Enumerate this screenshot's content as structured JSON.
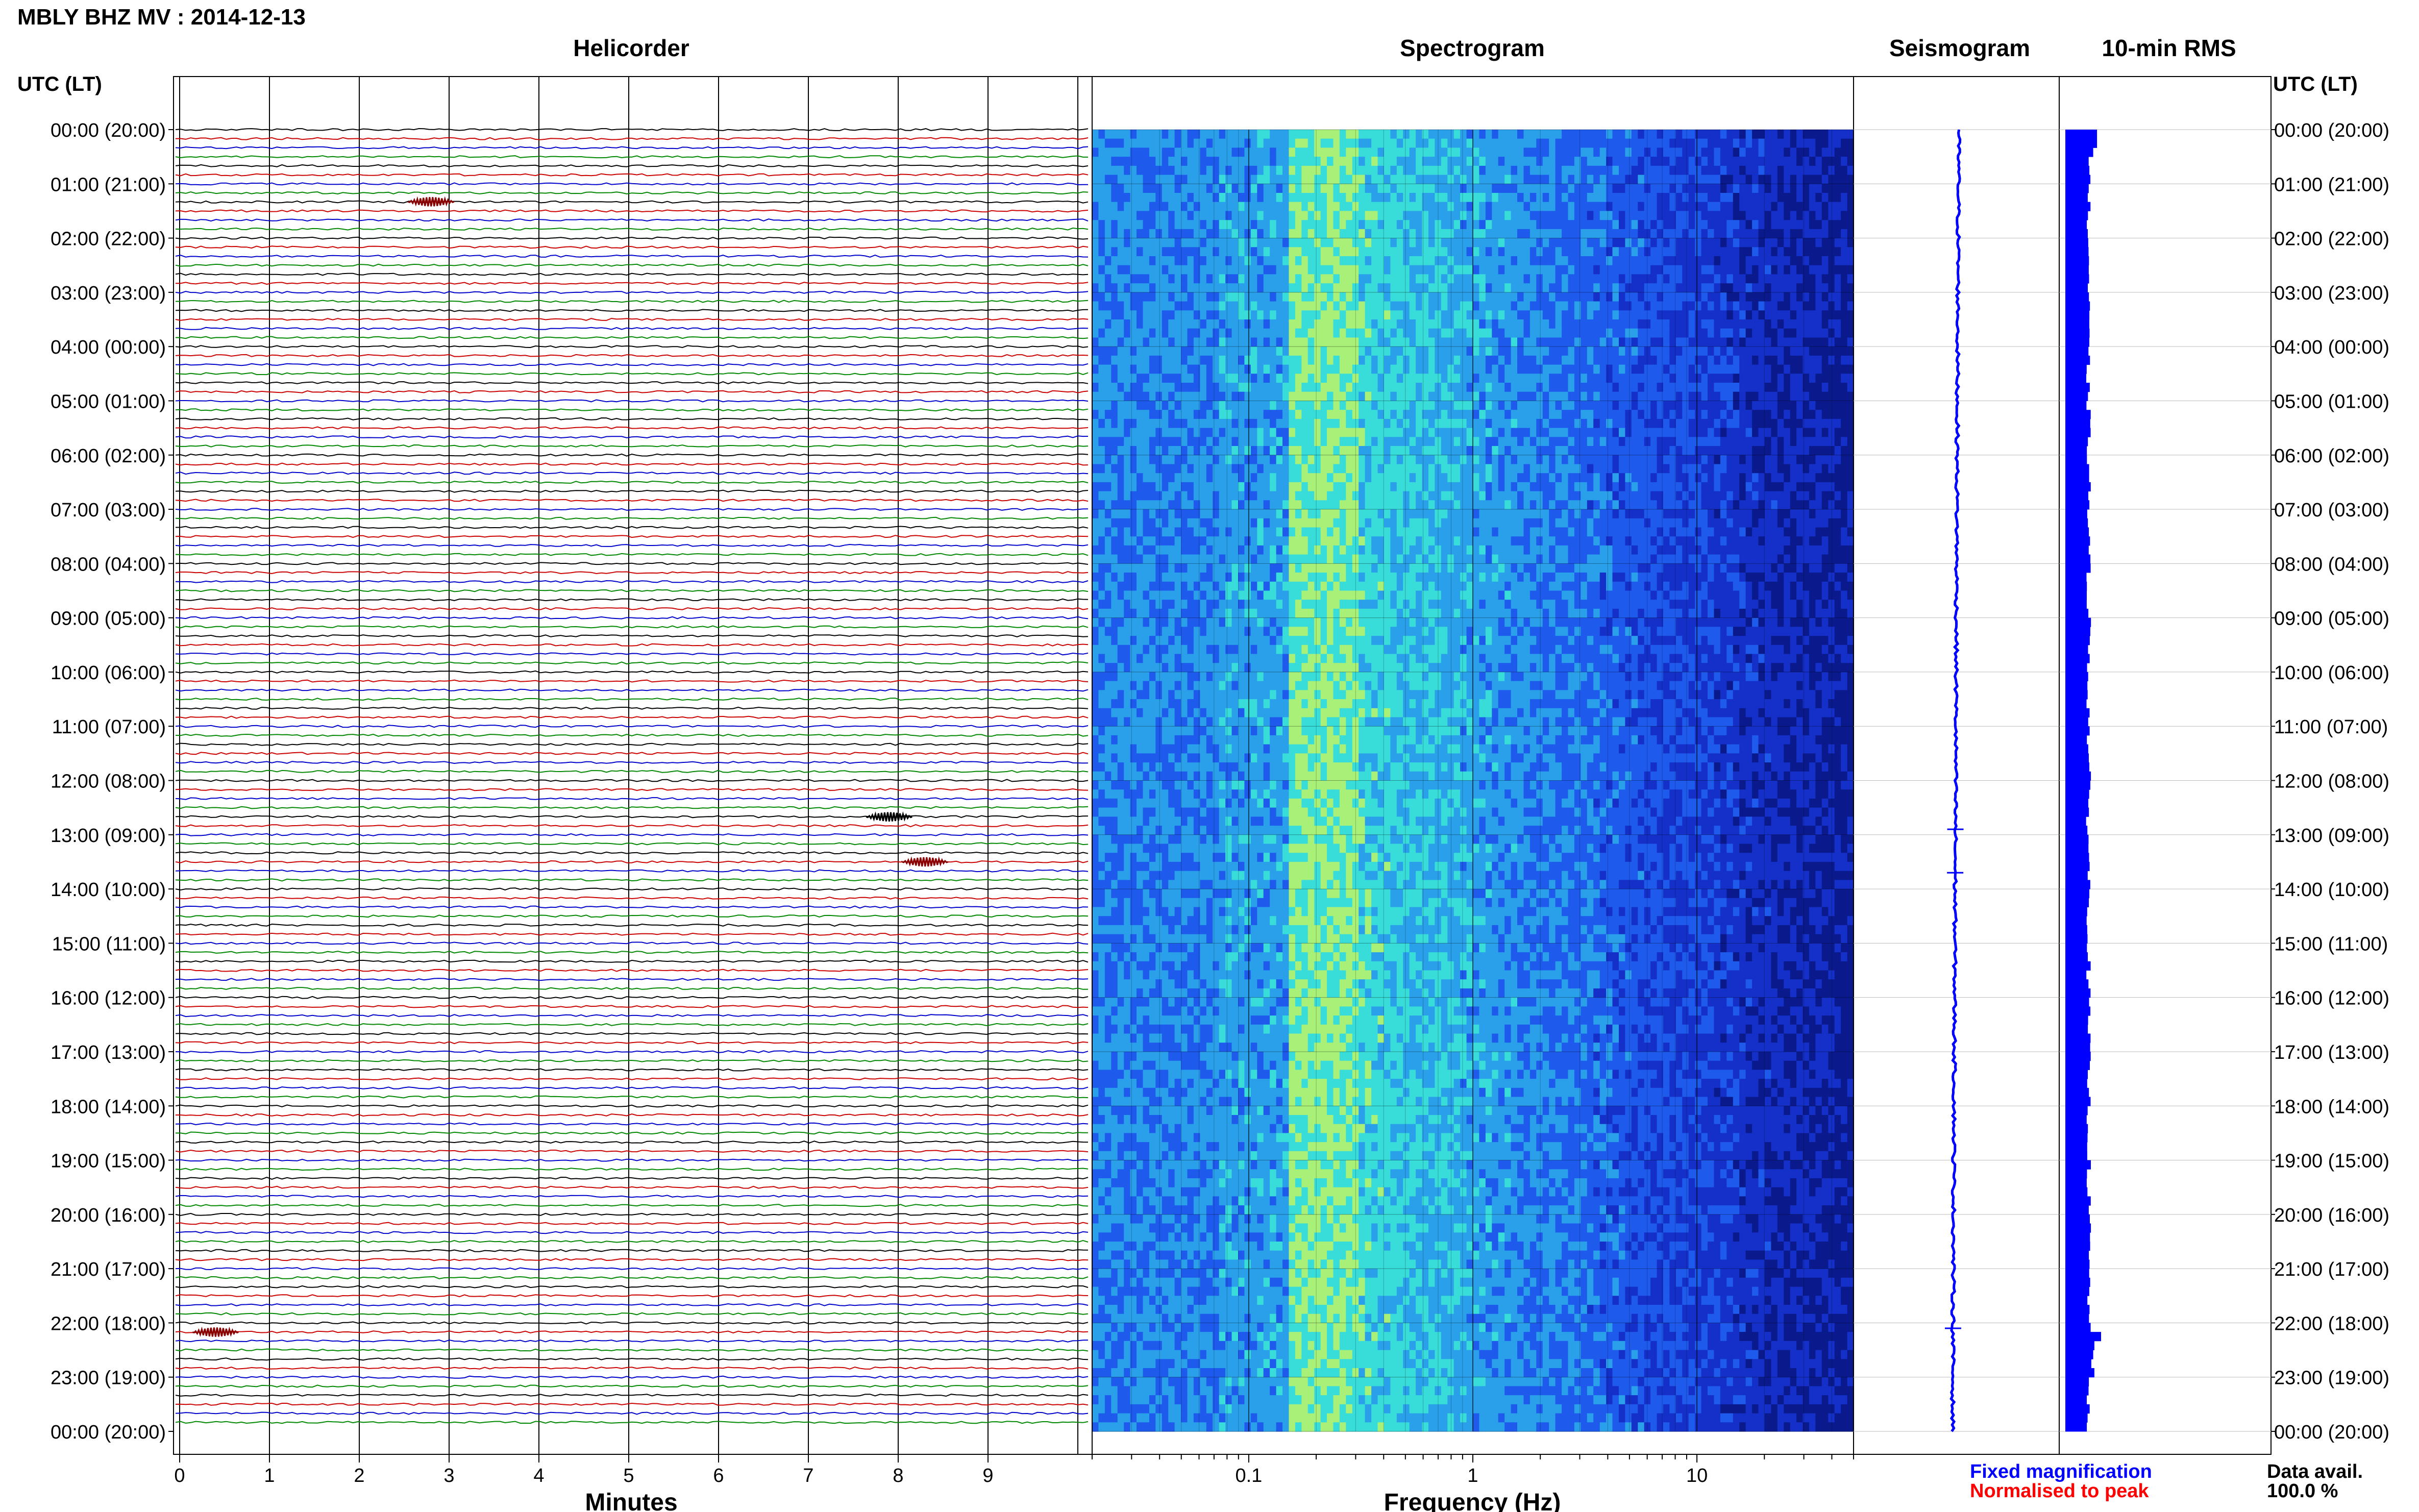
{
  "figure": {
    "title": "MBLY BHZ MV : 2014-12-13",
    "utc_label_left": "UTC (LT)",
    "utc_label_right": "UTC (LT)",
    "legend": {
      "fixed": "Fixed magnification",
      "normalised": "Normalised to peak",
      "fixed_color": "#0000ff",
      "normalised_color": "#ff0000"
    },
    "data_avail_label": "Data avail.",
    "data_avail_value": "100.0 %"
  },
  "time_axis": {
    "labels": [
      "00:00 (20:00)",
      "01:00 (21:00)",
      "02:00 (22:00)",
      "03:00 (23:00)",
      "04:00 (00:00)",
      "05:00 (01:00)",
      "06:00 (02:00)",
      "07:00 (03:00)",
      "08:00 (04:00)",
      "09:00 (05:00)",
      "10:00 (06:00)",
      "11:00 (07:00)",
      "12:00 (08:00)",
      "13:00 (09:00)",
      "14:00 (10:00)",
      "15:00 (11:00)",
      "16:00 (12:00)",
      "17:00 (13:00)",
      "18:00 (14:00)",
      "19:00 (15:00)",
      "20:00 (16:00)",
      "21:00 (17:00)",
      "22:00 (18:00)",
      "23:00 (19:00)",
      "00:00 (20:00)"
    ]
  },
  "chart_data": [
    {
      "type": "line",
      "title": "Helicorder",
      "xlabel": "Minutes",
      "x_ticks": [
        0,
        1,
        2,
        3,
        4,
        5,
        6,
        7,
        8,
        9
      ],
      "xlim": [
        0,
        10
      ],
      "rows_per_hour": 6,
      "trace_colors": [
        "#000000",
        "#cc0000",
        "#0000cc",
        "#008800"
      ],
      "events": [
        {
          "hour": 1.33,
          "minute": 2.8,
          "color": "#8b0000"
        },
        {
          "hour": 12.67,
          "minute": 7.9,
          "color": "#000000"
        },
        {
          "hour": 13.5,
          "minute": 8.3,
          "color": "#8b0000"
        },
        {
          "hour": 22.17,
          "minute": 0.4,
          "color": "#8b0000"
        }
      ]
    },
    {
      "type": "heatmap",
      "title": "Spectrogram",
      "xlabel": "Frequency (Hz)",
      "x_scale": "log",
      "xlim": [
        0.02,
        50
      ],
      "x_tick_labels": [
        {
          "value": 0.1,
          "label": "0.1"
        },
        {
          "value": 1,
          "label": "1"
        },
        {
          "value": 10,
          "label": "10"
        }
      ],
      "colormap": [
        "#0a1a8c",
        "#1530c8",
        "#1e5aec",
        "#2aa0ea",
        "#38dcd8",
        "#a8f078"
      ],
      "peak_band_hz": [
        0.15,
        0.3
      ]
    },
    {
      "type": "line",
      "title": "Seismogram",
      "color": "#0000ff",
      "spikes_hour": [
        12.9,
        13.7,
        22.1
      ]
    },
    {
      "type": "bar",
      "title": "10-min RMS",
      "color": "#0000ff",
      "orientation": "horizontal",
      "values_relative": [
        0.9,
        0.55,
        0.6,
        0.52,
        0.5,
        0.58,
        0.62,
        0.56,
        0.6,
        0.64,
        0.58,
        0.6,
        0.55,
        0.6,
        0.62,
        0.58,
        0.56,
        0.6,
        0.62,
        0.6,
        0.64,
        0.6,
        1.0,
        0.6
      ],
      "spike_hour": 22.2
    }
  ]
}
